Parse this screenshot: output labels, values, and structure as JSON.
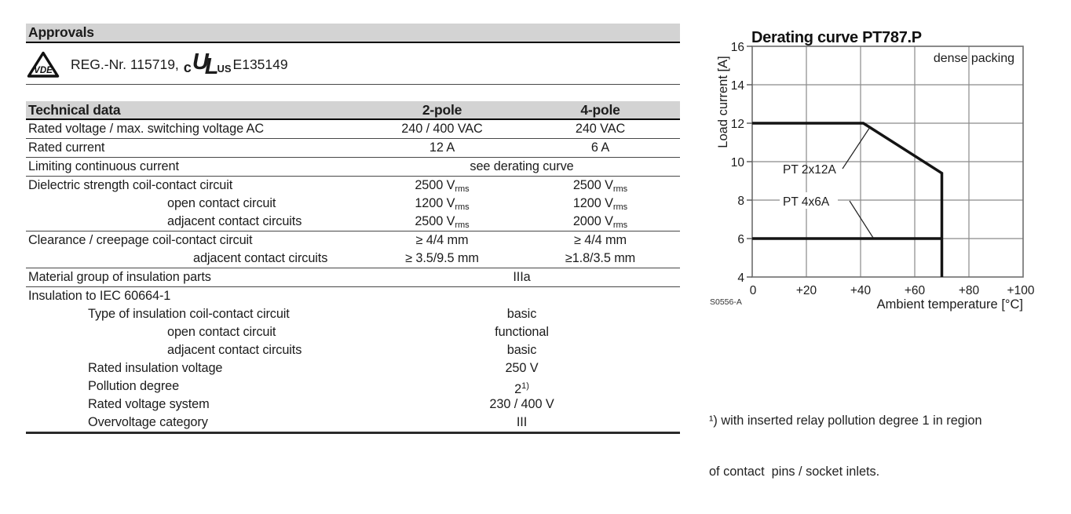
{
  "approvals": {
    "title": "Approvals",
    "vde_label": "VDE",
    "reg_text": "REG.-Nr. 115719,",
    "ul_prefix": "c",
    "ul_letters": {
      "u": "U",
      "l": "L"
    },
    "ul_suffix": "US",
    "cert_number": "E135149"
  },
  "table": {
    "header": {
      "title": "Technical data",
      "col1": "2-pole",
      "col2": "4-pole"
    },
    "rows": [
      {
        "label": "Rated voltage / max. switching voltage AC",
        "v1": "240 / 400 VAC",
        "v2": "240 VAC",
        "border": true
      },
      {
        "label": "Rated current",
        "v1": "12 A",
        "v2": "6 A",
        "border": true
      },
      {
        "label": "Limiting continuous current",
        "span": "see derating curve",
        "border": true
      },
      {
        "label": "Dielectric strength coil-contact circuit",
        "v1": "2500 V",
        "v1sub": "rms",
        "v2": "2500 V",
        "v2sub": "rms"
      },
      {
        "label": "open contact circuit",
        "indent": 2,
        "v1": "1200 V",
        "v1sub": "rms",
        "v2": "1200 V",
        "v2sub": "rms"
      },
      {
        "label": "adjacent contact circuits",
        "indent": 2,
        "v1": "2500 V",
        "v1sub": "rms",
        "v2": "2000 V",
        "v2sub": "rms",
        "border": true
      },
      {
        "label": "Clearance / creepage coil-contact circuit",
        "v1": "≥ 4/4 mm",
        "v2": "≥ 4/4 mm"
      },
      {
        "label": "adjacent contact circuits",
        "indent": 3,
        "v1": "≥ 3.5/9.5 mm",
        "v2": "≥1.8/3.5 mm",
        "border": true
      },
      {
        "label": "Material group of insulation parts",
        "span": "IIIa",
        "border": true
      },
      {
        "label": "Insulation to IEC 60664-1"
      },
      {
        "label": "Type of insulation coil-contact circuit",
        "indent": 1,
        "span": "basic"
      },
      {
        "label": "open contact circuit",
        "indent": 2,
        "span": "functional"
      },
      {
        "label": "adjacent contact circuits",
        "indent": 2,
        "span": "basic"
      },
      {
        "label": "Rated insulation voltage",
        "indent": 1,
        "span": "250 V"
      },
      {
        "label": "Pollution degree",
        "indent": 1,
        "span": "2",
        "sup": "1)"
      },
      {
        "label": "Rated voltage system",
        "indent": 1,
        "span": "230 / 400 V"
      },
      {
        "label": "Overvoltage category",
        "indent": 1,
        "span": "III"
      }
    ]
  },
  "chart_data": {
    "type": "line",
    "title": "Derating curve PT787.P",
    "xlabel": "Ambient temperature [°C]",
    "ylabel": "Load current [A]",
    "xlim": [
      0,
      100
    ],
    "ylim": [
      4,
      16
    ],
    "xticks": [
      "0",
      "+20",
      "+40",
      "+60",
      "+80",
      "+100"
    ],
    "yticks": [
      "16",
      "14",
      "12",
      "10",
      "8",
      "6",
      "4"
    ],
    "grid": true,
    "annotation": "dense packing",
    "figure_id": "S0556-A",
    "line_color": "#141414",
    "grid_color": "#8a8a8a",
    "series": [
      {
        "name": "PT 2x12A",
        "points": [
          [
            0,
            12
          ],
          [
            41,
            12
          ],
          [
            70,
            9.4
          ],
          [
            70,
            4
          ]
        ]
      },
      {
        "name": "PT 4x6A",
        "points": [
          [
            0,
            6
          ],
          [
            70,
            6
          ]
        ]
      }
    ]
  },
  "footnote": {
    "line1": "¹) with inserted relay pollution degree 1 in region",
    "line2": "of contact  pins / socket inlets."
  }
}
